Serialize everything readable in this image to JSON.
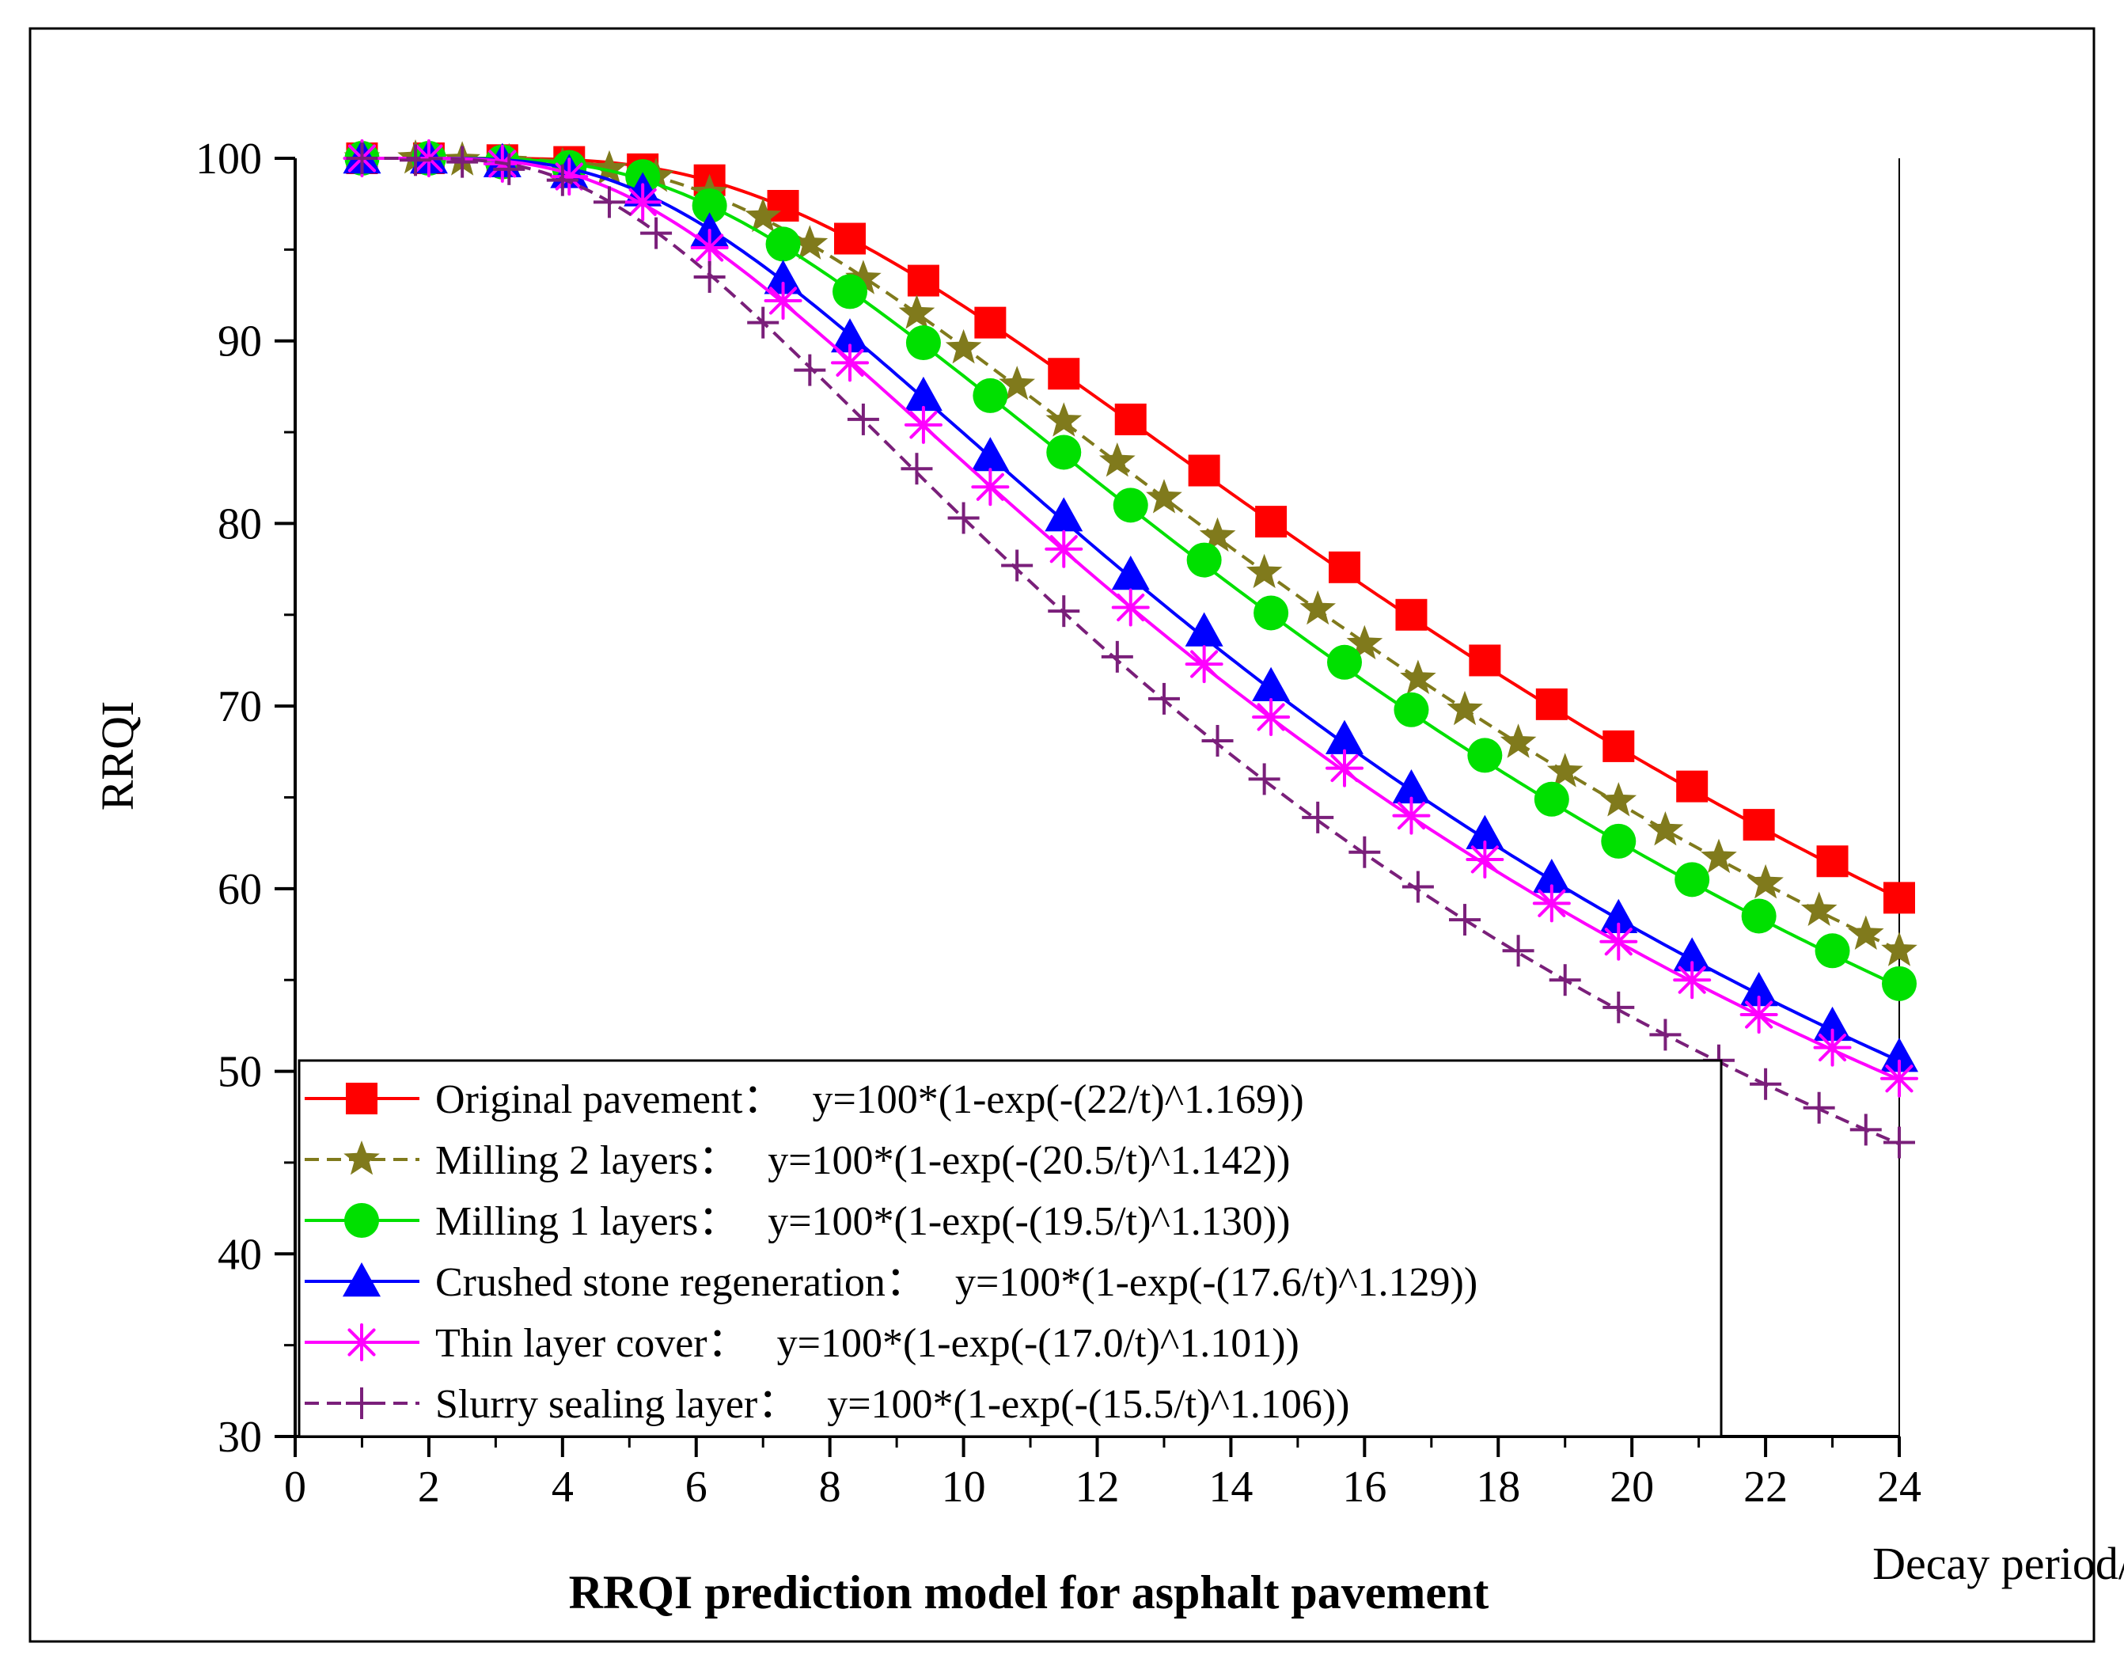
{
  "chart_data": {
    "type": "line",
    "title": "RRQI prediction model for asphalt pavement",
    "xlabel": "Decay period/Year",
    "ylabel": "RRQI",
    "xlim": [
      0,
      24
    ],
    "ylim": [
      30,
      100
    ],
    "xticks": [
      0,
      2,
      4,
      6,
      8,
      10,
      12,
      14,
      16,
      18,
      20,
      22,
      24
    ],
    "yticks": [
      30,
      40,
      50,
      60,
      70,
      80,
      90,
      100
    ],
    "legend_position": "bottom-left",
    "series": [
      {
        "name": "Original pavement",
        "legend_label": "Original pavement：",
        "equation": "y=100*(1-exp(-(22/t)^1.169))",
        "color": "#ff0000",
        "marker": "square",
        "dash": "solid",
        "scale": 22,
        "shape": 1.169,
        "x": [
          1,
          2,
          3.1,
          4.1,
          5.2,
          6.2,
          7.3,
          8.3,
          9.4,
          10.4,
          11.5,
          12.5,
          13.6,
          14.6,
          15.7,
          16.7,
          17.8,
          18.8,
          19.8,
          20.9,
          21.9,
          23.0,
          24.0
        ],
        "values": [
          100.0,
          100.0,
          99.9,
          99.8,
          99.4,
          98.8,
          97.4,
          95.6,
          93.3,
          91.0,
          88.2,
          85.7,
          82.9,
          80.1,
          77.6,
          75.0,
          72.5,
          70.1,
          67.8,
          65.6,
          63.5,
          61.5,
          59.5
        ]
      },
      {
        "name": "Milling 2 layers",
        "legend_label": "Milling 2 layers：",
        "equation": "y=100*(1-exp(-(20.5/t)^1.142))",
        "color": "#807a1c",
        "marker": "star",
        "dash": "dashed",
        "scale": 20.5,
        "shape": 1.142,
        "x": [
          1,
          1.8,
          2.5,
          3.2,
          4.0,
          4.7,
          5.4,
          6.2,
          7.0,
          7.7,
          8.5,
          9.3,
          10.0,
          10.8,
          11.5,
          12.3,
          13.0,
          13.8,
          14.5,
          15.3,
          16.0,
          16.8,
          17.5,
          18.3,
          19.0,
          19.8,
          20.5,
          21.3,
          22.0,
          22.8,
          23.5,
          24.0
        ],
        "values": [
          100.0,
          100.0,
          99.9,
          99.8,
          99.6,
          99.4,
          99.0,
          98.1,
          96.8,
          95.3,
          93.4,
          91.5,
          89.6,
          87.6,
          85.6,
          83.4,
          81.4,
          79.3,
          77.3,
          75.3,
          73.4,
          71.5,
          69.8,
          68.0,
          66.4,
          64.8,
          63.2,
          61.7,
          60.3,
          58.8,
          57.5,
          56.6
        ]
      },
      {
        "name": "Milling 1 layers",
        "legend_label": "Milling 1 layers：",
        "equation": "y=100*(1-exp(-(19.5/t)^1.130))",
        "color": "#00e000",
        "marker": "circle",
        "dash": "solid",
        "scale": 19.5,
        "shape": 1.13,
        "x": [
          1,
          2,
          3.1,
          4.1,
          5.2,
          6.2,
          7.3,
          8.3,
          9.4,
          10.4,
          11.5,
          12.5,
          13.6,
          14.6,
          15.7,
          16.7,
          17.8,
          18.8,
          19.8,
          20.9,
          21.9,
          23.0,
          24.0
        ],
        "values": [
          100.0,
          100.0,
          99.8,
          99.5,
          99.0,
          97.4,
          95.3,
          92.7,
          89.9,
          87.0,
          83.9,
          81.0,
          78.0,
          75.1,
          72.4,
          69.8,
          67.3,
          64.9,
          62.6,
          60.5,
          58.5,
          56.6,
          54.8
        ]
      },
      {
        "name": "Crushed stone regeneration",
        "legend_label": "Crushed stone regeneration：",
        "equation": "y=100*(1-exp(-(17.6/t)^1.129))",
        "color": "#0000ff",
        "marker": "triangle",
        "dash": "solid",
        "scale": 17.6,
        "shape": 1.129,
        "x": [
          1,
          2,
          3.1,
          4.1,
          5.2,
          6.2,
          7.3,
          8.3,
          9.4,
          10.4,
          11.5,
          12.5,
          13.6,
          14.6,
          15.7,
          16.7,
          17.8,
          18.8,
          19.8,
          20.9,
          21.9,
          23.0,
          24.0
        ],
        "values": [
          100.0,
          100.0,
          99.8,
          99.2,
          98.2,
          96.0,
          93.4,
          90.2,
          87.0,
          83.7,
          80.4,
          77.2,
          74.1,
          71.1,
          68.2,
          65.5,
          63.0,
          60.6,
          58.4,
          56.3,
          54.4,
          52.5,
          50.8
        ]
      },
      {
        "name": "Thin layer cover",
        "legend_label": "Thin layer cover：",
        "equation": "y=100*(1-exp(-(17.0/t)^1.101))",
        "color": "#ff00ff",
        "marker": "asterisk",
        "dash": "solid",
        "scale": 17.0,
        "shape": 1.101,
        "x": [
          1,
          2,
          3.1,
          4.1,
          5.2,
          6.2,
          7.3,
          8.3,
          9.4,
          10.4,
          11.5,
          12.5,
          13.6,
          14.6,
          15.7,
          16.7,
          17.8,
          18.8,
          19.8,
          20.9,
          21.9,
          23.0,
          24.0
        ],
        "values": [
          100.0,
          100.0,
          99.7,
          99.0,
          97.6,
          95.1,
          92.2,
          88.8,
          85.4,
          82.0,
          78.6,
          75.4,
          72.3,
          69.4,
          66.6,
          64.0,
          61.6,
          59.2,
          57.1,
          55.0,
          53.1,
          51.3,
          49.6
        ]
      },
      {
        "name": "Slurry sealing layer",
        "legend_label": "Slurry sealing layer：",
        "equation": "y=100*(1-exp(-(15.5/t)^1.106))",
        "color": "#7a1f7a",
        "marker": "plus",
        "dash": "dashed",
        "scale": 15.5,
        "shape": 1.106,
        "x": [
          1,
          1.8,
          2.5,
          3.2,
          4.0,
          4.7,
          5.4,
          6.2,
          7.0,
          7.7,
          8.5,
          9.3,
          10.0,
          10.8,
          11.5,
          12.3,
          13.0,
          13.8,
          14.5,
          15.3,
          16.0,
          16.8,
          17.5,
          18.3,
          19.0,
          19.8,
          20.5,
          21.3,
          22.0,
          22.8,
          23.5,
          24.0
        ],
        "values": [
          100.0,
          99.9,
          99.8,
          99.4,
          98.8,
          97.6,
          95.9,
          93.5,
          91.0,
          88.4,
          85.7,
          83.0,
          80.3,
          77.7,
          75.2,
          72.7,
          70.4,
          68.1,
          66.0,
          63.9,
          62.0,
          60.1,
          58.3,
          56.6,
          55.0,
          53.5,
          52.0,
          50.6,
          49.3,
          48.0,
          46.8,
          46.1
        ]
      }
    ]
  }
}
